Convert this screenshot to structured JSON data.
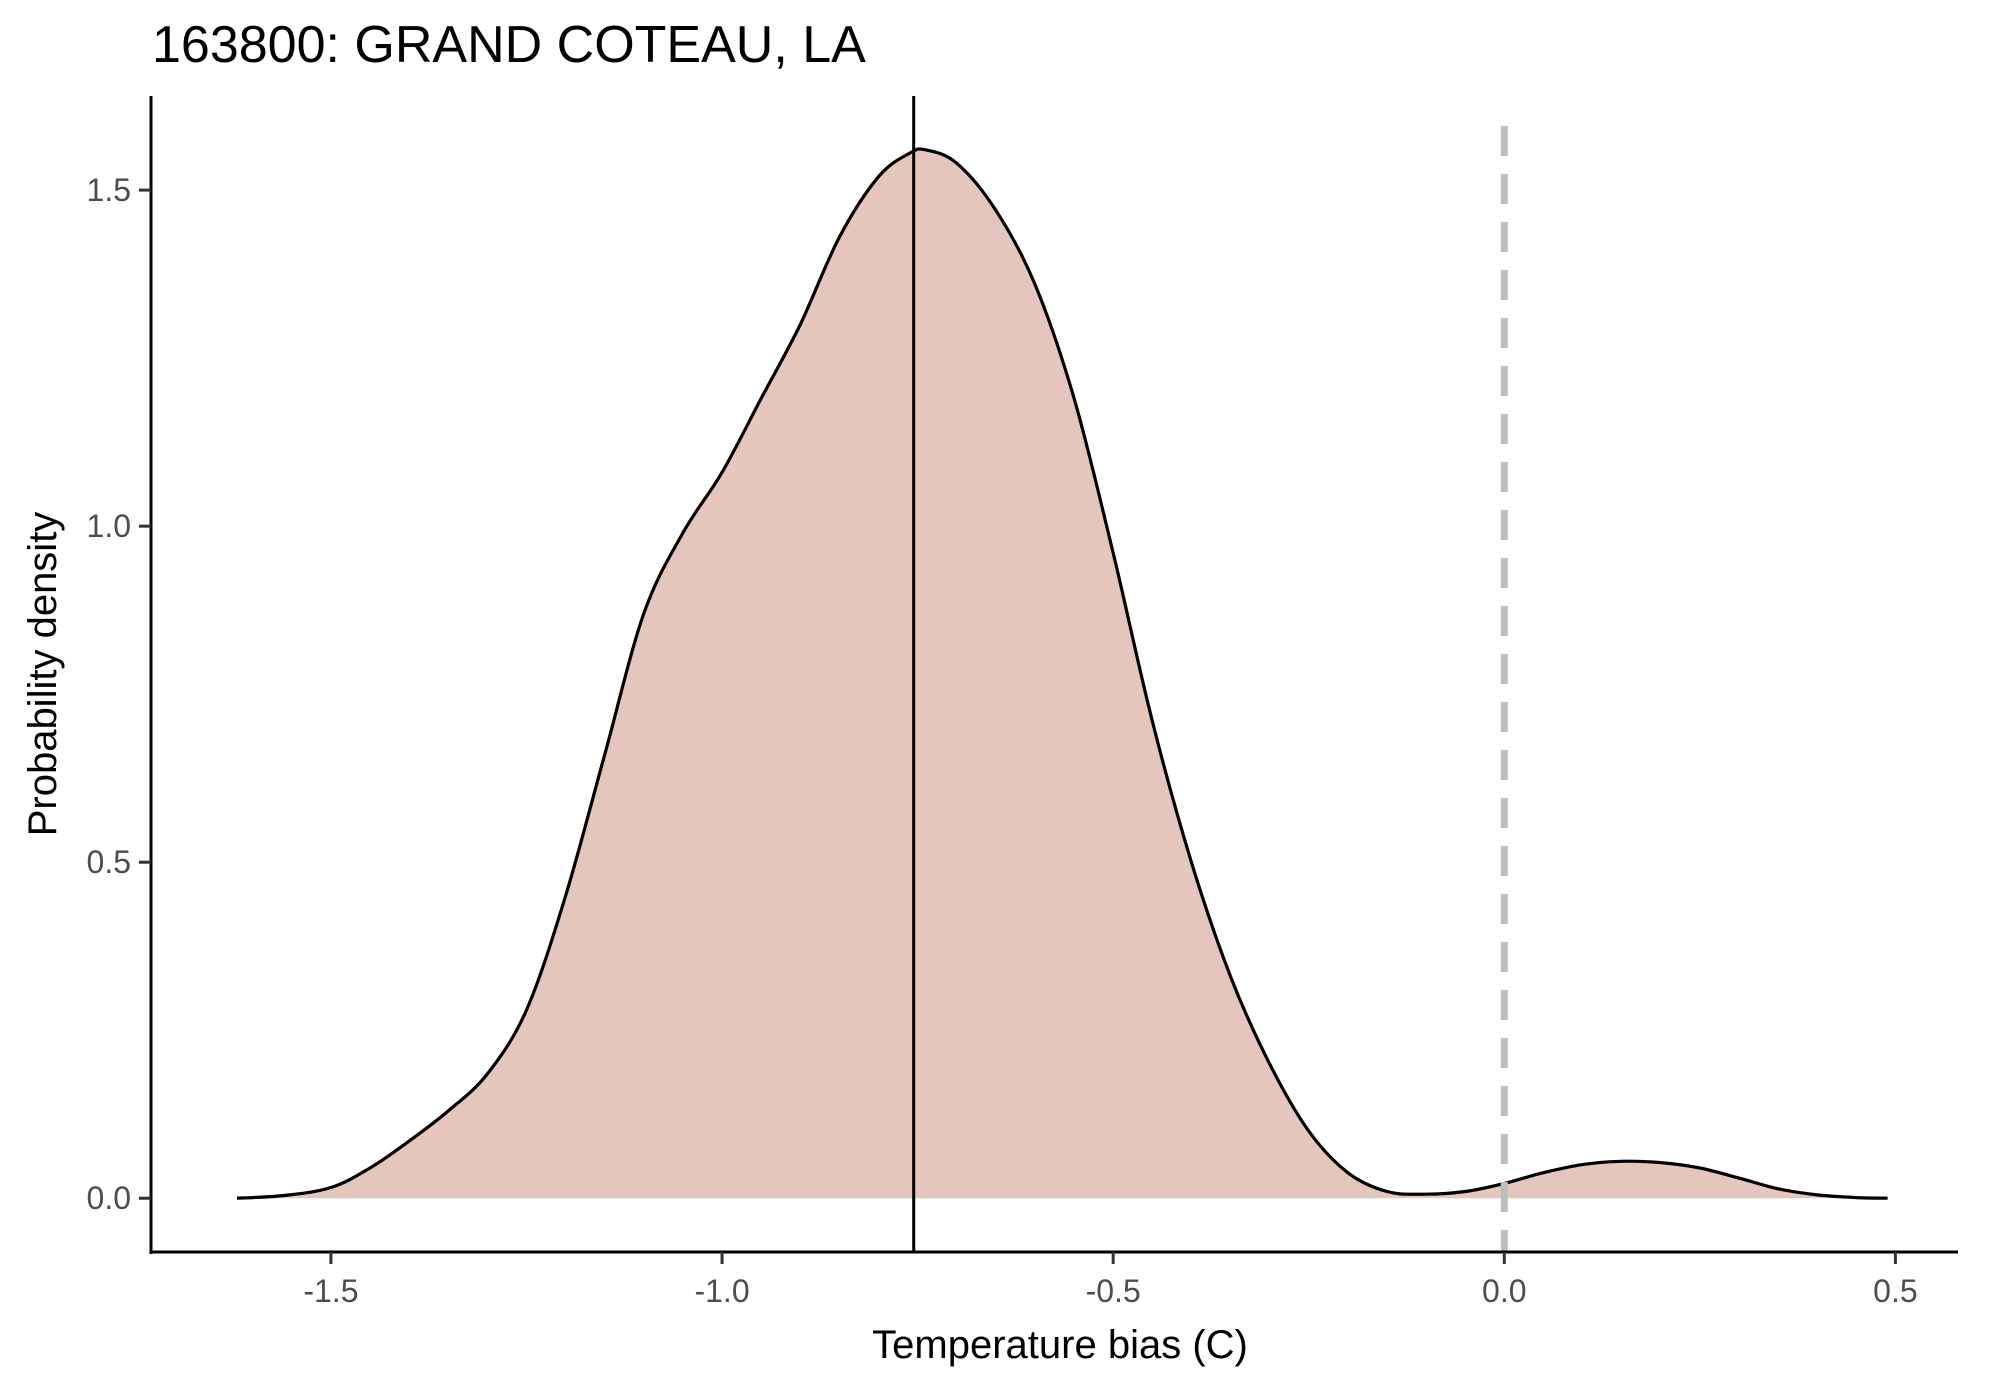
{
  "chart_data": {
    "type": "area",
    "title": "163800: GRAND COTEAU, LA",
    "xlabel": "Temperature bias (C)",
    "ylabel": "Probability density",
    "xlim": [
      -1.73,
      0.58
    ],
    "ylim": [
      -0.08,
      1.64
    ],
    "xticks": [
      -1.5,
      -1.0,
      -0.5,
      0.0,
      0.5
    ],
    "xtick_labels": [
      "-1.5",
      "-1.0",
      "-0.5",
      "0.0",
      "0.5"
    ],
    "yticks": [
      0.0,
      0.5,
      1.0,
      1.5
    ],
    "ytick_labels": [
      "0.0",
      "0.5",
      "1.0",
      "1.5"
    ],
    "grid": false,
    "legend": "none",
    "series": [
      {
        "x": [
          -1.62,
          -1.56,
          -1.5,
          -1.45,
          -1.4,
          -1.35,
          -1.3,
          -1.25,
          -1.2,
          -1.15,
          -1.1,
          -1.05,
          -1.0,
          -0.95,
          -0.9,
          -0.85,
          -0.8,
          -0.76,
          -0.74,
          -0.7,
          -0.65,
          -0.6,
          -0.55,
          -0.5,
          -0.45,
          -0.4,
          -0.35,
          -0.3,
          -0.25,
          -0.2,
          -0.15,
          -0.1,
          -0.05,
          0.0,
          0.05,
          0.1,
          0.15,
          0.2,
          0.25,
          0.3,
          0.35,
          0.4,
          0.45,
          0.49
        ],
        "y": [
          0.0,
          0.004,
          0.016,
          0.045,
          0.085,
          0.13,
          0.185,
          0.28,
          0.45,
          0.66,
          0.87,
          0.99,
          1.08,
          1.19,
          1.3,
          1.43,
          1.52,
          1.555,
          1.56,
          1.54,
          1.47,
          1.36,
          1.19,
          0.96,
          0.71,
          0.5,
          0.33,
          0.2,
          0.1,
          0.038,
          0.01,
          0.006,
          0.01,
          0.022,
          0.038,
          0.05,
          0.055,
          0.053,
          0.045,
          0.03,
          0.014,
          0.005,
          0.001,
          0.0
        ],
        "fill": "#e4c6bd",
        "stroke": "#000000"
      }
    ],
    "annotations": [
      {
        "type": "vline",
        "x": -0.755,
        "style": "solid",
        "color": "#000000"
      },
      {
        "type": "vline",
        "x": 0.0,
        "style": "dashed",
        "color": "#bebebe"
      }
    ]
  }
}
